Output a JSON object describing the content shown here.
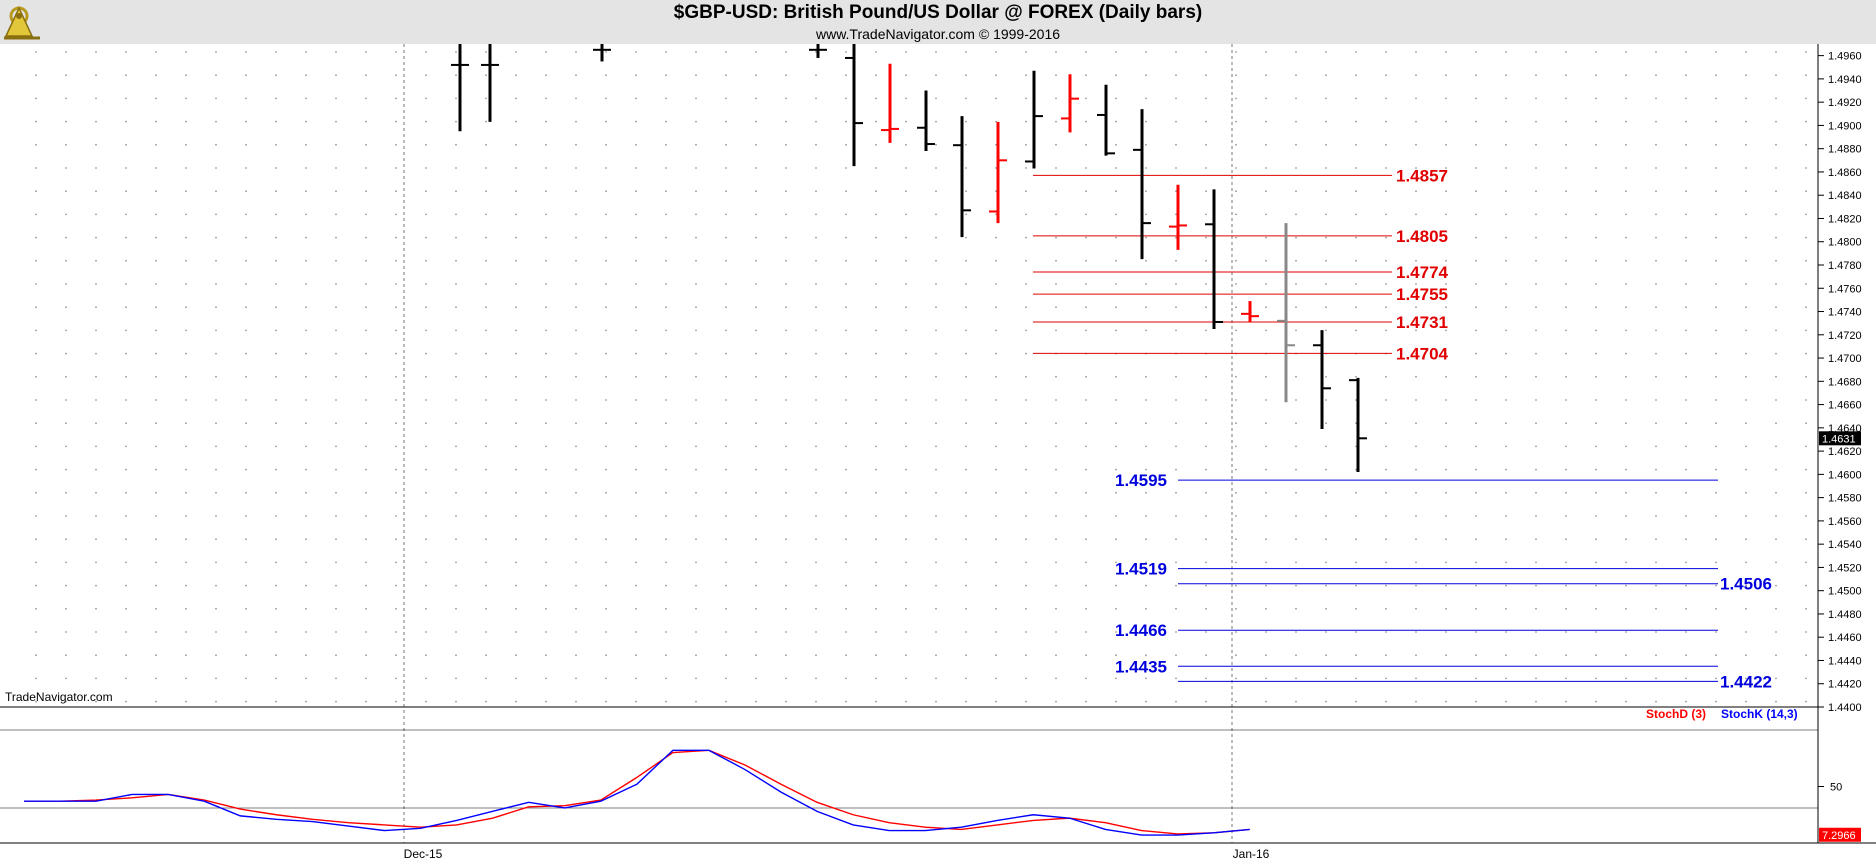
{
  "header": {
    "title": "$GBP-USD:  British Pound/US Dollar @ FOREX  (Daily bars)",
    "subtitle": "www.TradeNavigator.com © 1999-2016"
  },
  "watermark": "TradeNavigator.com",
  "colors": {
    "up_bar": "#000000",
    "down_bar": "#ff0000",
    "resistance": "#e00000",
    "support": "#0000dd",
    "stoch_d": "#ff0000",
    "stoch_k": "#0000ff"
  },
  "chart_data": [
    {
      "type": "ohlc",
      "ylim": [
        1.44,
        1.497
      ],
      "y_ticks": [
        "1.4960",
        "1.4940",
        "1.4920",
        "1.4900",
        "1.4880",
        "1.4860",
        "1.4840",
        "1.4820",
        "1.4800",
        "1.4780",
        "1.4760",
        "1.4740",
        "1.4720",
        "1.4700",
        "1.4680",
        "1.4660",
        "1.4640",
        "1.4620",
        "1.4600",
        "1.4580",
        "1.4560",
        "1.4540",
        "1.4520",
        "1.4500",
        "1.4480",
        "1.4460",
        "1.4440",
        "1.4420",
        "1.4400"
      ],
      "x_labels": [
        {
          "label": "Dec-15",
          "bar": 9.5
        },
        {
          "label": "Jan-16",
          "bar": 33.5
        }
      ],
      "last_price": "1.4631",
      "bars": [
        {
          "h": 1.4975,
          "l": 1.4895,
          "o": 1.4952,
          "c": 1.4952,
          "color": "black"
        },
        {
          "h": 1.4975,
          "l": 1.4903,
          "o": 1.4952,
          "c": 1.4952,
          "color": "black"
        },
        {
          "h": 1.4975,
          "l": 1.4955,
          "o": 1.4965,
          "c": 1.4965,
          "color": "black"
        },
        {
          "h": 1.4975,
          "l": 1.4958,
          "o": 1.4965,
          "c": 1.4965,
          "color": "black"
        },
        {
          "h": 1.4975,
          "l": 1.4865,
          "o": 1.4958,
          "c": 1.4902,
          "color": "black"
        },
        {
          "h": 1.4953,
          "l": 1.4885,
          "o": 1.4896,
          "c": 1.4897,
          "color": "red"
        },
        {
          "h": 1.493,
          "l": 1.4878,
          "o": 1.4898,
          "c": 1.4884,
          "color": "black"
        },
        {
          "h": 1.4908,
          "l": 1.4804,
          "o": 1.4883,
          "c": 1.4827,
          "color": "black"
        },
        {
          "h": 1.4903,
          "l": 1.4816,
          "o": 1.4826,
          "c": 1.487,
          "color": "red"
        },
        {
          "h": 1.4947,
          "l": 1.4863,
          "o": 1.4869,
          "c": 1.4908,
          "color": "black"
        },
        {
          "h": 1.4944,
          "l": 1.4894,
          "o": 1.4906,
          "c": 1.4923,
          "color": "red"
        },
        {
          "h": 1.4935,
          "l": 1.4874,
          "o": 1.4909,
          "c": 1.4876,
          "color": "black"
        },
        {
          "h": 1.4914,
          "l": 1.4785,
          "o": 1.4879,
          "c": 1.4816,
          "color": "black"
        },
        {
          "h": 1.4849,
          "l": 1.4793,
          "o": 1.4813,
          "c": 1.4814,
          "color": "red"
        },
        {
          "h": 1.4845,
          "l": 1.4725,
          "o": 1.4815,
          "c": 1.4731,
          "color": "black"
        },
        {
          "h": 1.4749,
          "l": 1.4731,
          "o": 1.4738,
          "c": 1.4736,
          "color": "red"
        },
        {
          "h": 1.4816,
          "l": 1.4662,
          "o": 1.4732,
          "c": 1.4711,
          "color": "gray"
        },
        {
          "h": 1.4724,
          "l": 1.4639,
          "o": 1.4711,
          "c": 1.4674,
          "color": "black"
        },
        {
          "h": 1.4683,
          "l": 1.4602,
          "o": 1.4681,
          "c": 1.4631,
          "color": "black"
        }
      ],
      "resistance_levels": [
        "1.4857",
        "1.4805",
        "1.4774",
        "1.4755",
        "1.4731",
        "1.4704"
      ],
      "support_levels_left": [
        "1.4595",
        "1.4519",
        "1.4466",
        "1.4435"
      ],
      "support_levels_right": [
        "1.4506",
        "1.4422"
      ]
    },
    {
      "type": "line",
      "ylim": [
        0,
        100
      ],
      "y_ticks": [
        "50"
      ],
      "last_value": "7.2966",
      "series": [
        {
          "name": "StochD (3)",
          "color": "#ff0000",
          "values": [
            37,
            37,
            38,
            40,
            43,
            38,
            30,
            25,
            21,
            18,
            16,
            14,
            16,
            22,
            32,
            33,
            38,
            58,
            80,
            82,
            69,
            52,
            36,
            25,
            18,
            14,
            12,
            16,
            20,
            22,
            18,
            11,
            8,
            9,
            12
          ]
        },
        {
          "name": "StochK (14,3)",
          "color": "#0000ff",
          "values": [
            37,
            37,
            37,
            43,
            43,
            37,
            24,
            21,
            19,
            15,
            11,
            13,
            20,
            28,
            36,
            31,
            37,
            52,
            82,
            82,
            65,
            45,
            28,
            16,
            11,
            11,
            14,
            20,
            25,
            22,
            12,
            7,
            7,
            9,
            12
          ]
        }
      ]
    }
  ]
}
